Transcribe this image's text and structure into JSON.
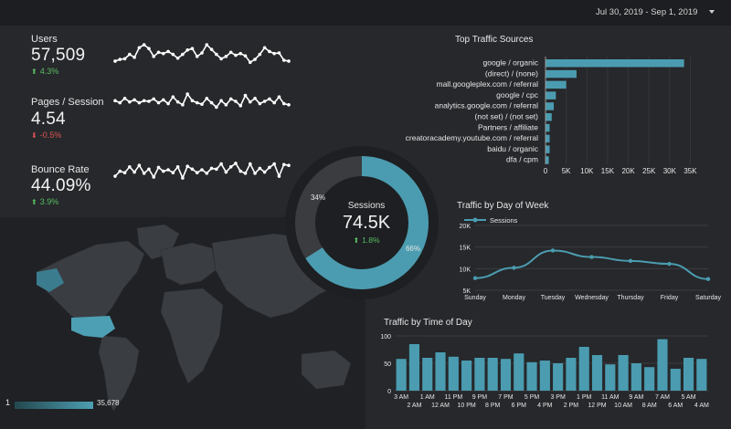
{
  "header": {
    "date_range": "Jul 30, 2019 - Sep 1, 2019"
  },
  "colors": {
    "accent": "#4b9cb0",
    "positive": "#5bbd63",
    "negative": "#e05454",
    "ring_track": "#3a3c40"
  },
  "kpis": [
    {
      "label": "Users",
      "value": "57,509",
      "delta": "4.3%",
      "trend": "up",
      "spark": [
        0.78,
        0.72,
        0.7,
        0.55,
        0.65,
        0.32,
        0.22,
        0.35,
        0.62,
        0.48,
        0.52,
        0.45,
        0.55,
        0.68,
        0.55,
        0.4,
        0.35,
        0.62,
        0.5,
        0.22,
        0.38,
        0.55,
        0.7,
        0.62,
        0.48,
        0.58,
        0.52,
        0.6,
        0.82,
        0.72,
        0.55,
        0.32,
        0.45,
        0.52,
        0.5,
        0.75,
        0.78
      ]
    },
    {
      "label": "Pages / Session",
      "value": "4.54",
      "delta": "-0.5%",
      "trend": "down",
      "spark": [
        0.48,
        0.55,
        0.4,
        0.52,
        0.45,
        0.55,
        0.48,
        0.5,
        0.42,
        0.55,
        0.45,
        0.58,
        0.35,
        0.52,
        0.62,
        0.25,
        0.48,
        0.55,
        0.6,
        0.4,
        0.55,
        0.7,
        0.48,
        0.62,
        0.42,
        0.5,
        0.65,
        0.3,
        0.52,
        0.4,
        0.58,
        0.5,
        0.42,
        0.55,
        0.35,
        0.58,
        0.62
      ]
    },
    {
      "label": "Bounce Rate",
      "value": "44.09%",
      "delta": "3.9%",
      "trend": "up",
      "spark": [
        0.72,
        0.55,
        0.6,
        0.4,
        0.58,
        0.35,
        0.62,
        0.48,
        0.75,
        0.42,
        0.55,
        0.5,
        0.6,
        0.4,
        0.78,
        0.38,
        0.48,
        0.6,
        0.5,
        0.62,
        0.45,
        0.48,
        0.3,
        0.58,
        0.4,
        0.28,
        0.55,
        0.62,
        0.3,
        0.62,
        0.45,
        0.58,
        0.42,
        0.3,
        0.72,
        0.32,
        0.35
      ]
    }
  ],
  "sessions_donut": {
    "title": "Sessions",
    "value": "74.5K",
    "delta": "1.8%",
    "trend": "up",
    "segments": [
      {
        "label": "66%",
        "share": 0.66
      },
      {
        "label": "34%",
        "share": 0.34
      }
    ]
  },
  "map": {
    "legend_min": "1",
    "legend_max": "35,678"
  },
  "chart_data": [
    {
      "type": "bar",
      "orientation": "horizontal",
      "title": "Top Traffic Sources",
      "categories": [
        "google / organic",
        "(direct) / (none)",
        "mall.googleplex.com / referral",
        "google / cpc",
        "analytics.google.com / referral",
        "(not set) / (not set)",
        "Partners / affiliate",
        "creatoracademy.youtube.com / referral",
        "baidu / organic",
        "dfa / cpm"
      ],
      "values": [
        33500,
        7500,
        5000,
        2500,
        2000,
        1500,
        1000,
        1000,
        1000,
        800
      ],
      "xlim": [
        0,
        36000
      ],
      "xticks": [
        "0",
        "5K",
        "10K",
        "15K",
        "20K",
        "25K",
        "30K",
        "35K"
      ]
    },
    {
      "type": "line",
      "title": "Traffic by Day of Week",
      "legend": "Sessions",
      "categories": [
        "Sunday",
        "Monday",
        "Tuesday",
        "Wednesday",
        "Thursday",
        "Friday",
        "Saturday"
      ],
      "values": [
        7800,
        10200,
        14200,
        12700,
        11800,
        11100,
        7600
      ],
      "ylim": [
        5000,
        20000
      ],
      "yticks": [
        "20K",
        "15K",
        "10K",
        "5K"
      ]
    },
    {
      "type": "bar",
      "title": "Traffic by Time of Day",
      "categories": [
        "3 AM",
        "2 AM",
        "1 AM",
        "12 AM",
        "11 PM",
        "10 PM",
        "9 PM",
        "8 PM",
        "7 PM",
        "6 PM",
        "5 PM",
        "4 PM",
        "3 PM",
        "2 PM",
        "1 PM",
        "12 PM",
        "11 AM",
        "10 AM",
        "9 AM",
        "8 AM",
        "7 AM",
        "6 AM",
        "5 AM",
        "4 AM"
      ],
      "values": [
        58,
        85,
        60,
        70,
        62,
        55,
        60,
        60,
        58,
        68,
        52,
        55,
        50,
        60,
        80,
        65,
        48,
        65,
        50,
        43,
        94,
        40,
        60,
        58
      ],
      "ylim": [
        0,
        100
      ],
      "yticks": [
        "100",
        "50",
        "0"
      ],
      "xlabels_top": [
        "3 AM",
        "1 AM",
        "11 PM",
        "9 PM",
        "7 PM",
        "5 PM",
        "3 PM",
        "1 PM",
        "11 AM",
        "9 AM",
        "7 AM",
        "5 AM"
      ],
      "xlabels_bottom": [
        "2 AM",
        "12 AM",
        "10 PM",
        "8 PM",
        "6 PM",
        "4 PM",
        "2 PM",
        "12 PM",
        "10 AM",
        "8 AM",
        "6 AM",
        "4 AM"
      ]
    }
  ]
}
